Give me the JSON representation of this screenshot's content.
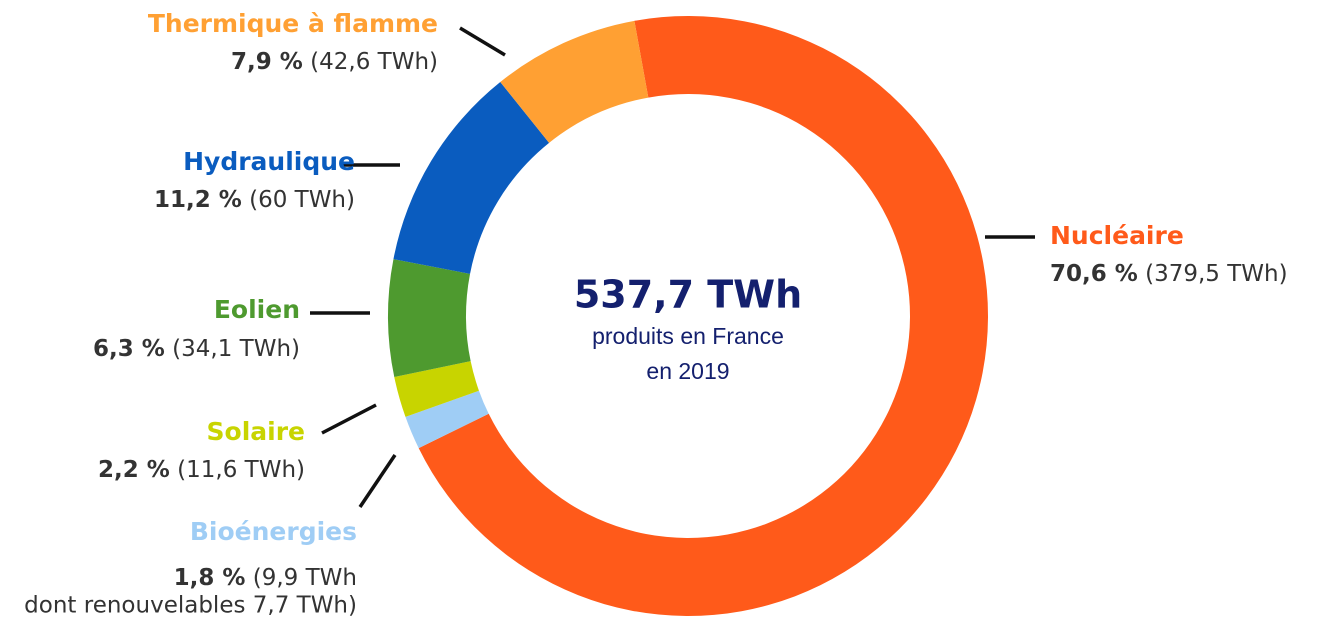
{
  "chart_data": {
    "type": "donut",
    "categories": [
      "Nucléaire",
      "Bioénergies",
      "Solaire",
      "Eolien",
      "Hydraulique",
      "Thermique à flamme"
    ],
    "values": [
      70.6,
      1.8,
      2.2,
      6.3,
      11.2,
      7.9
    ],
    "value_labels": [
      "70,6 %",
      "1,8 %",
      "2,2 %",
      "6,3 %",
      "11,2 %",
      "7,9 %"
    ],
    "detail_labels": [
      [
        "(379,5 TWh)"
      ],
      [
        "(9,9 TWh",
        "dont renouvelables 7,7 TWh)"
      ],
      [
        "(11,6 TWh)"
      ],
      [
        "(34,1 TWh)"
      ],
      [
        "(60 TWh)"
      ],
      [
        "(42,6 TWh)"
      ]
    ],
    "colors": [
      "#ff5a1a",
      "#9fcdf5",
      "#c8d400",
      "#4e9a2f",
      "#0a5cbf",
      "#ffa033"
    ],
    "center_text": [
      "537,7 TWh",
      "produits en France",
      "en 2019"
    ]
  }
}
